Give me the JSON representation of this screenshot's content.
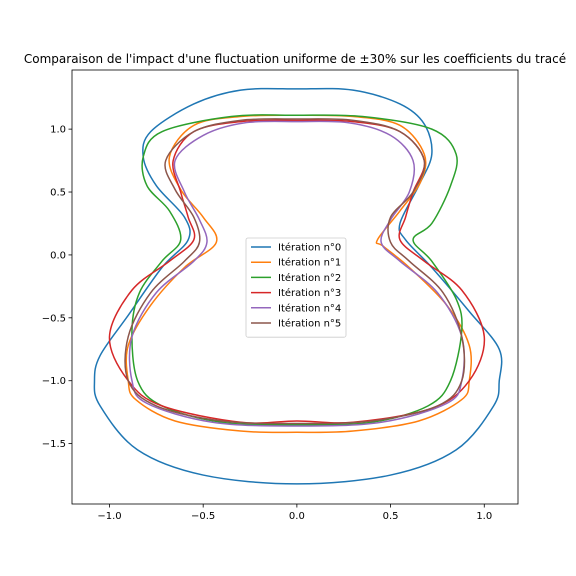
{
  "chart_data": {
    "type": "line",
    "title": "Comparaison de l'impact d'une fluctuation uniforme de ±30% sur les coefficients du tracé",
    "xlabel": "",
    "ylabel": "",
    "xlim": [
      -1.2,
      1.18
    ],
    "ylim": [
      -1.98,
      1.47
    ],
    "x_ticks": [
      -1.0,
      -0.5,
      0.0,
      0.5,
      1.0
    ],
    "x_tick_labels": [
      "−1.0",
      "−0.5",
      "0.0",
      "0.5",
      "1.0"
    ],
    "y_ticks": [
      1.0,
      0.5,
      0.0,
      -0.5,
      -1.0,
      -1.5
    ],
    "y_tick_labels": [
      "1.0",
      "0.5",
      "0.0",
      "−0.5",
      "−1.0",
      "−1.5"
    ],
    "grid": false,
    "legend_position": "center",
    "series": [
      {
        "name": "Itération n°0",
        "color": "#1f77b4",
        "points": [
          [
            0.0,
            1.32
          ],
          [
            0.3,
            1.31
          ],
          [
            0.55,
            1.2
          ],
          [
            0.68,
            1.04
          ],
          [
            0.72,
            0.8
          ],
          [
            0.65,
            0.55
          ],
          [
            0.55,
            0.25
          ],
          [
            0.58,
            0.12
          ],
          [
            0.72,
            -0.1
          ],
          [
            0.92,
            -0.45
          ],
          [
            1.08,
            -0.75
          ],
          [
            1.08,
            -1.0
          ],
          [
            1.05,
            -1.2
          ],
          [
            0.85,
            -1.55
          ],
          [
            0.5,
            -1.75
          ],
          [
            0.0,
            -1.82
          ],
          [
            -0.5,
            -1.75
          ],
          [
            -0.85,
            -1.55
          ],
          [
            -1.05,
            -1.2
          ],
          [
            -1.08,
            -1.0
          ],
          [
            -1.05,
            -0.8
          ],
          [
            -0.9,
            -0.48
          ],
          [
            -0.72,
            -0.1
          ],
          [
            -0.58,
            0.12
          ],
          [
            -0.6,
            0.3
          ],
          [
            -0.75,
            0.55
          ],
          [
            -0.82,
            0.78
          ],
          [
            -0.78,
            0.98
          ],
          [
            -0.55,
            1.2
          ],
          [
            -0.3,
            1.31
          ],
          [
            0.0,
            1.32
          ]
        ]
      },
      {
        "name": "Itération n°1",
        "color": "#ff7f0e",
        "points": [
          [
            0.0,
            1.11
          ],
          [
            0.3,
            1.1
          ],
          [
            0.55,
            1.03
          ],
          [
            0.68,
            0.8
          ],
          [
            0.66,
            0.58
          ],
          [
            0.55,
            0.35
          ],
          [
            0.43,
            0.12
          ],
          [
            0.46,
            0.07
          ],
          [
            0.6,
            -0.1
          ],
          [
            0.8,
            -0.4
          ],
          [
            0.92,
            -0.72
          ],
          [
            0.92,
            -1.0
          ],
          [
            0.88,
            -1.15
          ],
          [
            0.65,
            -1.32
          ],
          [
            0.3,
            -1.4
          ],
          [
            0.0,
            -1.41
          ],
          [
            -0.3,
            -1.4
          ],
          [
            -0.65,
            -1.32
          ],
          [
            -0.86,
            -1.15
          ],
          [
            -0.9,
            -1.0
          ],
          [
            -0.9,
            -0.72
          ],
          [
            -0.78,
            -0.4
          ],
          [
            -0.6,
            -0.1
          ],
          [
            -0.43,
            0.1
          ],
          [
            -0.5,
            0.3
          ],
          [
            -0.62,
            0.52
          ],
          [
            -0.68,
            0.78
          ],
          [
            -0.55,
            1.03
          ],
          [
            -0.3,
            1.1
          ],
          [
            0.0,
            1.11
          ]
        ]
      },
      {
        "name": "Itération n°2",
        "color": "#2ca02c",
        "points": [
          [
            0.0,
            1.11
          ],
          [
            0.35,
            1.1
          ],
          [
            0.72,
            1.0
          ],
          [
            0.85,
            0.8
          ],
          [
            0.82,
            0.55
          ],
          [
            0.72,
            0.25
          ],
          [
            0.62,
            0.12
          ],
          [
            0.72,
            -0.05
          ],
          [
            0.85,
            -0.35
          ],
          [
            0.88,
            -0.6
          ],
          [
            0.82,
            -1.0
          ],
          [
            0.7,
            -1.2
          ],
          [
            0.4,
            -1.33
          ],
          [
            0.0,
            -1.35
          ],
          [
            -0.4,
            -1.33
          ],
          [
            -0.72,
            -1.2
          ],
          [
            -0.85,
            -1.0
          ],
          [
            -0.88,
            -0.6
          ],
          [
            -0.84,
            -0.3
          ],
          [
            -0.72,
            -0.05
          ],
          [
            -0.62,
            0.12
          ],
          [
            -0.68,
            0.35
          ],
          [
            -0.8,
            0.55
          ],
          [
            -0.82,
            0.78
          ],
          [
            -0.72,
            0.98
          ],
          [
            -0.35,
            1.1
          ],
          [
            0.0,
            1.11
          ]
        ]
      },
      {
        "name": "Itération n°3",
        "color": "#d62728",
        "points": [
          [
            0.0,
            1.07
          ],
          [
            0.3,
            1.06
          ],
          [
            0.55,
            0.98
          ],
          [
            0.68,
            0.75
          ],
          [
            0.62,
            0.5
          ],
          [
            0.58,
            0.3
          ],
          [
            0.55,
            0.12
          ],
          [
            0.68,
            -0.05
          ],
          [
            0.88,
            -0.28
          ],
          [
            1.0,
            -0.65
          ],
          [
            0.92,
            -1.0
          ],
          [
            0.72,
            -1.22
          ],
          [
            0.3,
            -1.33
          ],
          [
            0.0,
            -1.32
          ],
          [
            -0.3,
            -1.33
          ],
          [
            -0.72,
            -1.2
          ],
          [
            -0.9,
            -1.0
          ],
          [
            -1.0,
            -0.65
          ],
          [
            -0.88,
            -0.28
          ],
          [
            -0.68,
            -0.05
          ],
          [
            -0.55,
            0.12
          ],
          [
            -0.58,
            0.3
          ],
          [
            -0.62,
            0.5
          ],
          [
            -0.66,
            0.75
          ],
          [
            -0.55,
            0.98
          ],
          [
            -0.3,
            1.06
          ],
          [
            0.0,
            1.07
          ]
        ]
      },
      {
        "name": "Itération n°4",
        "color": "#9467bd",
        "points": [
          [
            0.0,
            1.06
          ],
          [
            0.28,
            1.05
          ],
          [
            0.5,
            0.95
          ],
          [
            0.62,
            0.75
          ],
          [
            0.6,
            0.5
          ],
          [
            0.5,
            0.28
          ],
          [
            0.45,
            0.1
          ],
          [
            0.55,
            -0.05
          ],
          [
            0.75,
            -0.3
          ],
          [
            0.88,
            -0.65
          ],
          [
            0.88,
            -1.0
          ],
          [
            0.8,
            -1.18
          ],
          [
            0.45,
            -1.33
          ],
          [
            0.0,
            -1.36
          ],
          [
            -0.45,
            -1.33
          ],
          [
            -0.8,
            -1.18
          ],
          [
            -0.88,
            -1.0
          ],
          [
            -0.88,
            -0.65
          ],
          [
            -0.75,
            -0.3
          ],
          [
            -0.55,
            -0.05
          ],
          [
            -0.48,
            0.1
          ],
          [
            -0.52,
            0.28
          ],
          [
            -0.6,
            0.5
          ],
          [
            -0.65,
            0.75
          ],
          [
            -0.5,
            0.95
          ],
          [
            -0.28,
            1.05
          ],
          [
            0.0,
            1.06
          ]
        ]
      },
      {
        "name": "Itération n°5",
        "color": "#8c564b",
        "points": [
          [
            0.0,
            1.08
          ],
          [
            0.3,
            1.07
          ],
          [
            0.55,
            0.98
          ],
          [
            0.68,
            0.75
          ],
          [
            0.62,
            0.5
          ],
          [
            0.5,
            0.3
          ],
          [
            0.5,
            0.1
          ],
          [
            0.6,
            -0.05
          ],
          [
            0.78,
            -0.3
          ],
          [
            0.88,
            -0.65
          ],
          [
            0.88,
            -1.0
          ],
          [
            0.75,
            -1.2
          ],
          [
            0.4,
            -1.32
          ],
          [
            0.0,
            -1.34
          ],
          [
            -0.4,
            -1.32
          ],
          [
            -0.75,
            -1.2
          ],
          [
            -0.9,
            -1.0
          ],
          [
            -0.9,
            -0.65
          ],
          [
            -0.78,
            -0.3
          ],
          [
            -0.6,
            -0.05
          ],
          [
            -0.52,
            0.1
          ],
          [
            -0.55,
            0.3
          ],
          [
            -0.65,
            0.52
          ],
          [
            -0.7,
            0.75
          ],
          [
            -0.55,
            0.98
          ],
          [
            -0.3,
            1.07
          ],
          [
            0.0,
            1.08
          ]
        ]
      }
    ]
  }
}
